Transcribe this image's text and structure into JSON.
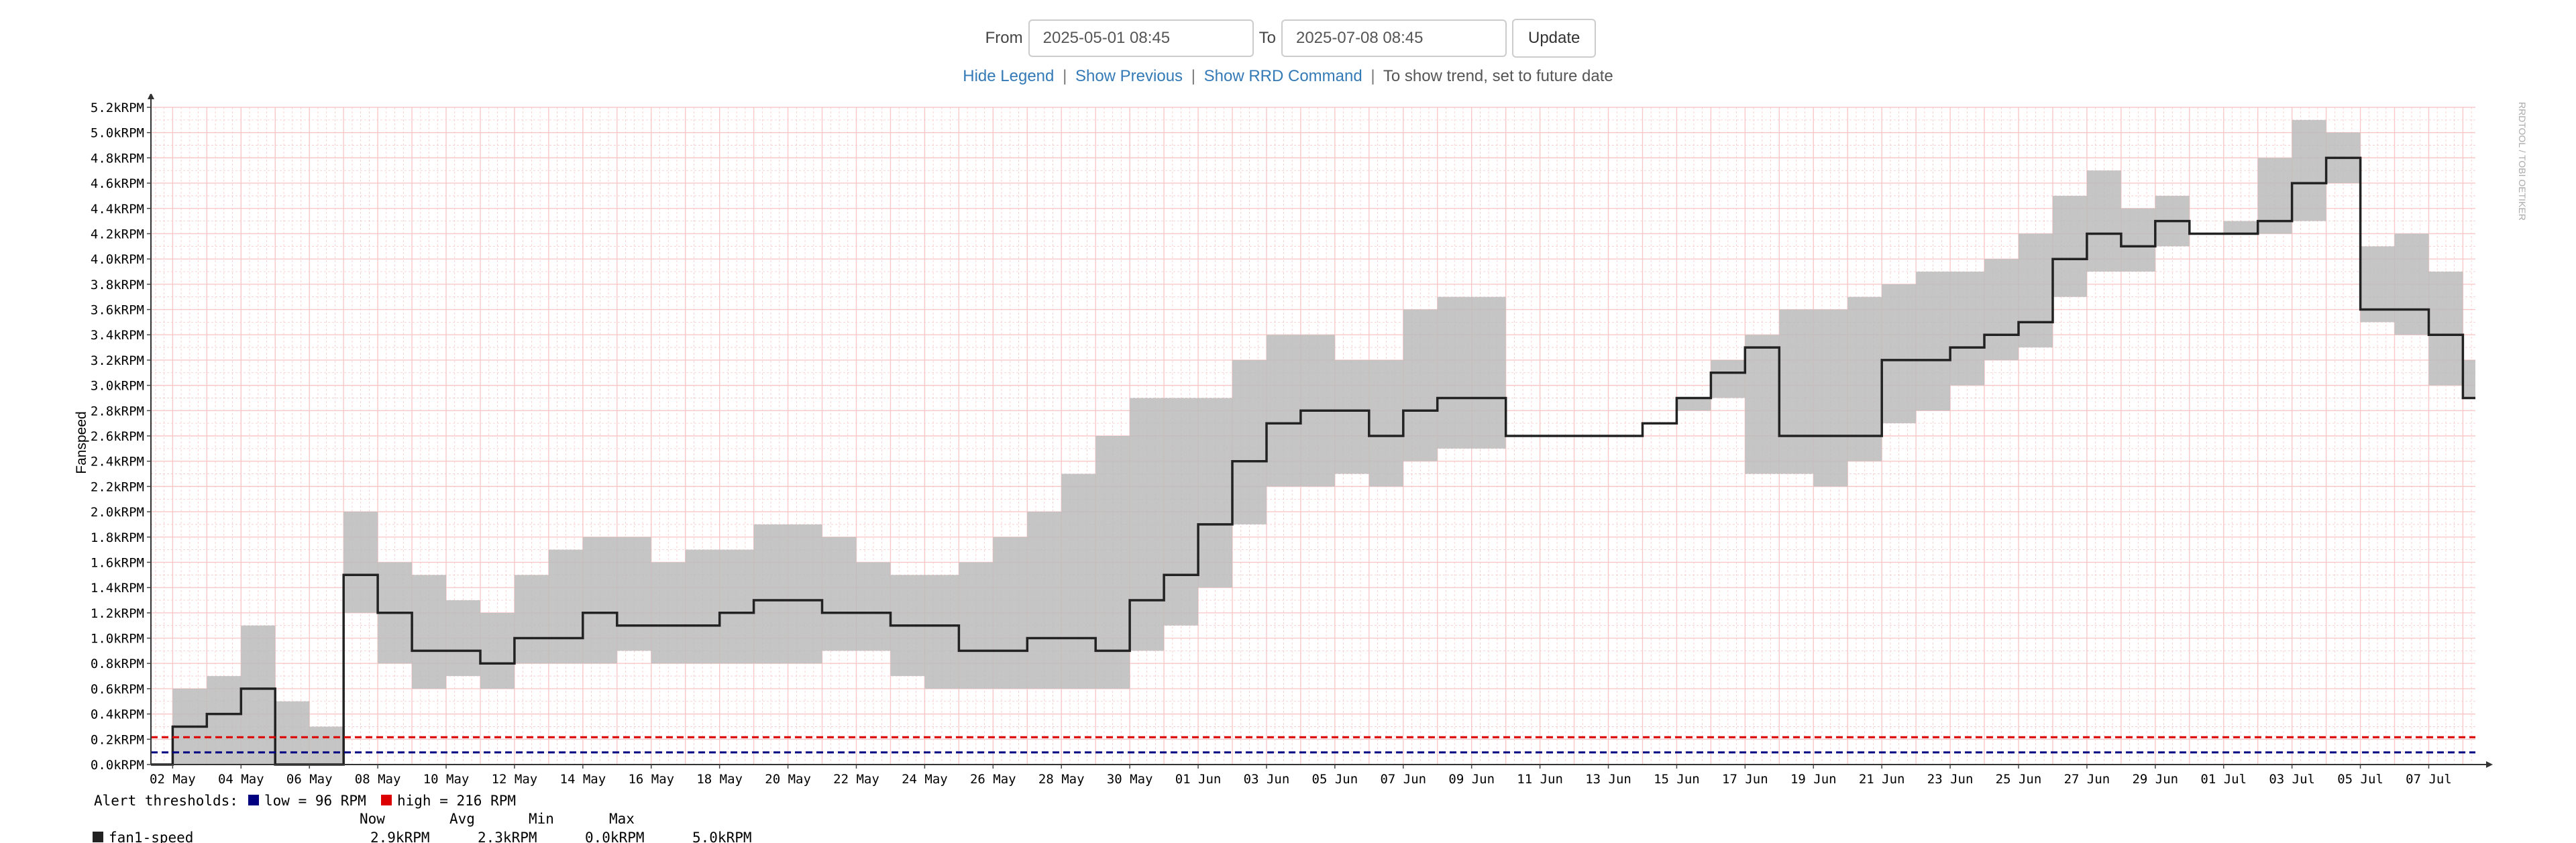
{
  "controls": {
    "from_label": "From",
    "from_value": "2025-05-01 08:45",
    "to_label": "To",
    "to_value": "2025-07-08 08:45",
    "update_label": "Update"
  },
  "links": {
    "hide_legend": "Hide Legend",
    "show_previous": "Show Previous",
    "show_rrd": "Show RRD Command",
    "separator": "|",
    "trend_note": "To show trend, set to future date"
  },
  "watermark": "RRDTOOL / TOBI OETIKER",
  "colors": {
    "grid": "#f8c8c8",
    "line": "#222222",
    "band": "#bbbbbb",
    "low": "#000080",
    "high": "#dd0000"
  },
  "chart_data": {
    "type": "line",
    "ylabel": "Fanspeed",
    "ylim": [
      0,
      5.2
    ],
    "yticks": [
      "0.0kRPM",
      "0.2kRPM",
      "0.4kRPM",
      "0.6kRPM",
      "0.8kRPM",
      "1.0kRPM",
      "1.2kRPM",
      "1.4kRPM",
      "1.6kRPM",
      "1.8kRPM",
      "2.0kRPM",
      "2.2kRPM",
      "2.4kRPM",
      "2.6kRPM",
      "2.8kRPM",
      "3.0kRPM",
      "3.2kRPM",
      "3.4kRPM",
      "3.6kRPM",
      "3.8kRPM",
      "4.0kRPM",
      "4.2kRPM",
      "4.4kRPM",
      "4.6kRPM",
      "4.8kRPM",
      "5.0kRPM",
      "5.2kRPM"
    ],
    "xlim": [
      "2025-05-01 08:45",
      "2025-07-08 08:45"
    ],
    "xticks": [
      "02 May",
      "04 May",
      "06 May",
      "08 May",
      "10 May",
      "12 May",
      "14 May",
      "16 May",
      "18 May",
      "20 May",
      "22 May",
      "24 May",
      "26 May",
      "28 May",
      "30 May",
      "01 Jun",
      "03 Jun",
      "05 Jun",
      "07 Jun",
      "09 Jun",
      "11 Jun",
      "13 Jun",
      "15 Jun",
      "17 Jun",
      "19 Jun",
      "21 Jun",
      "23 Jun",
      "25 Jun",
      "27 Jun",
      "29 Jun",
      "01 Jul",
      "03 Jul",
      "05 Jul",
      "07 Jul"
    ],
    "grid": true,
    "series": [
      {
        "name": "fan1-speed",
        "x": [
          "2025-05-01",
          "2025-05-02",
          "2025-05-03",
          "2025-05-04",
          "2025-05-05",
          "2025-05-06",
          "2025-05-07",
          "2025-05-08",
          "2025-05-09",
          "2025-05-10",
          "2025-05-11",
          "2025-05-12",
          "2025-05-13",
          "2025-05-14",
          "2025-05-15",
          "2025-05-16",
          "2025-05-17",
          "2025-05-18",
          "2025-05-19",
          "2025-05-20",
          "2025-05-21",
          "2025-05-22",
          "2025-05-23",
          "2025-05-24",
          "2025-05-25",
          "2025-05-26",
          "2025-05-27",
          "2025-05-28",
          "2025-05-29",
          "2025-05-30",
          "2025-05-31",
          "2025-06-01",
          "2025-06-02",
          "2025-06-03",
          "2025-06-04",
          "2025-06-05",
          "2025-06-06",
          "2025-06-07",
          "2025-06-08",
          "2025-06-09",
          "2025-06-10",
          "2025-06-11",
          "2025-06-12",
          "2025-06-13",
          "2025-06-14",
          "2025-06-15",
          "2025-06-16",
          "2025-06-17",
          "2025-06-18",
          "2025-06-19",
          "2025-06-20",
          "2025-06-21",
          "2025-06-22",
          "2025-06-23",
          "2025-06-24",
          "2025-06-25",
          "2025-06-26",
          "2025-06-27",
          "2025-06-28",
          "2025-06-29",
          "2025-06-30",
          "2025-07-01",
          "2025-07-02",
          "2025-07-03",
          "2025-07-04",
          "2025-07-05",
          "2025-07-06",
          "2025-07-07",
          "2025-07-08"
        ],
        "values": [
          0.0,
          0.3,
          0.4,
          0.6,
          0.0,
          0.0,
          1.5,
          1.2,
          0.9,
          0.9,
          0.8,
          1.0,
          1.0,
          1.2,
          1.1,
          1.1,
          1.1,
          1.2,
          1.3,
          1.3,
          1.2,
          1.2,
          1.1,
          1.1,
          0.9,
          0.9,
          1.0,
          1.0,
          0.9,
          1.3,
          1.5,
          1.9,
          2.4,
          2.7,
          2.8,
          2.8,
          2.6,
          2.8,
          2.9,
          2.9,
          2.6,
          2.6,
          2.6,
          2.6,
          2.7,
          2.9,
          3.1,
          3.3,
          2.6,
          2.6,
          2.6,
          3.2,
          3.2,
          3.3,
          3.4,
          3.5,
          4.0,
          4.2,
          4.1,
          4.3,
          4.2,
          4.2,
          4.3,
          4.6,
          4.8,
          3.6,
          3.6,
          3.4,
          2.9
        ],
        "min": [
          0.0,
          0.0,
          0.0,
          0.0,
          0.0,
          0.0,
          1.2,
          0.8,
          0.6,
          0.7,
          0.6,
          0.8,
          0.8,
          0.8,
          0.9,
          0.8,
          0.8,
          0.8,
          0.8,
          0.8,
          0.9,
          0.9,
          0.7,
          0.6,
          0.6,
          0.6,
          0.6,
          0.6,
          0.6,
          0.9,
          1.1,
          1.4,
          1.9,
          2.2,
          2.2,
          2.3,
          2.2,
          2.4,
          2.5,
          2.5,
          2.6,
          2.6,
          2.6,
          2.6,
          2.7,
          2.8,
          2.9,
          2.3,
          2.3,
          2.2,
          2.4,
          2.7,
          2.8,
          3.0,
          3.2,
          3.3,
          3.7,
          3.9,
          3.9,
          4.1,
          4.2,
          4.2,
          4.2,
          4.3,
          4.6,
          3.5,
          3.4,
          3.0,
          2.9
        ],
        "max": [
          0.0,
          0.6,
          0.7,
          1.1,
          0.5,
          0.3,
          2.0,
          1.6,
          1.5,
          1.3,
          1.2,
          1.5,
          1.7,
          1.8,
          1.8,
          1.6,
          1.7,
          1.7,
          1.9,
          1.9,
          1.8,
          1.6,
          1.5,
          1.5,
          1.6,
          1.8,
          2.0,
          2.3,
          2.6,
          2.9,
          2.9,
          2.9,
          3.2,
          3.4,
          3.4,
          3.2,
          3.2,
          3.6,
          3.7,
          3.7,
          2.6,
          2.6,
          2.6,
          2.6,
          2.7,
          2.9,
          3.2,
          3.4,
          3.6,
          3.6,
          3.7,
          3.8,
          3.9,
          3.9,
          4.0,
          4.2,
          4.5,
          4.7,
          4.4,
          4.5,
          4.2,
          4.3,
          4.8,
          5.1,
          5.0,
          4.1,
          4.2,
          3.9,
          3.2
        ]
      }
    ],
    "thresholds": {
      "title": "Alert thresholds:",
      "low_label": "low = 96 RPM",
      "low_value": 0.096,
      "high_label": "high = 216 RPM",
      "high_value": 0.216
    },
    "legend": {
      "headers": [
        "Now",
        "Avg",
        "Min",
        "Max"
      ],
      "rows": [
        {
          "name": "fan1-speed",
          "now": "2.9kRPM",
          "avg": "2.3kRPM",
          "min": "0.0kRPM",
          "max": "5.0kRPM"
        }
      ]
    }
  }
}
